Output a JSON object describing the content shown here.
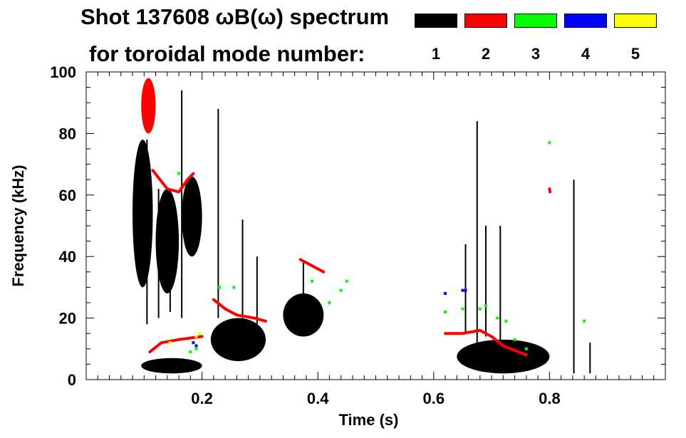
{
  "chart_data": {
    "type": "scatter",
    "title_line1": "Shot 137608 ωB(ω) spectrum",
    "title_line2": "for toroidal mode number:",
    "xlabel": "Time (s)",
    "ylabel": "Frequency (kHz)",
    "xlim": [
      0.0,
      1.0
    ],
    "ylim": [
      0,
      100
    ],
    "x_ticks": [
      0.2,
      0.4,
      0.6,
      0.8
    ],
    "x_tick_labels": [
      "0.2",
      "0.4",
      "0.6",
      "0.8"
    ],
    "y_ticks": [
      0,
      20,
      40,
      60,
      80,
      100
    ],
    "y_tick_labels": [
      "0",
      "20",
      "40",
      "60",
      "80",
      "100"
    ],
    "grid": false,
    "legend_placement": "top-right",
    "legend": [
      {
        "label": "1",
        "color": "#000000"
      },
      {
        "label": "2",
        "color": "#ff0000"
      },
      {
        "label": "3",
        "color": "#00ff00"
      },
      {
        "label": "4",
        "color": "#0000ff"
      },
      {
        "label": "5",
        "color": "#ffff00"
      }
    ],
    "series": [
      {
        "mode": 1,
        "color": "#000000",
        "blobs": [
          {
            "t0": 0.08,
            "t1": 0.115,
            "f0": 30,
            "f1": 78
          },
          {
            "t0": 0.12,
            "t1": 0.16,
            "f0": 28,
            "f1": 62
          },
          {
            "t0": 0.165,
            "t1": 0.2,
            "f0": 40,
            "f1": 66
          },
          {
            "t0": 0.095,
            "t1": 0.2,
            "f0": 2,
            "f1": 7
          },
          {
            "t0": 0.215,
            "t1": 0.31,
            "f0": 6,
            "f1": 20
          },
          {
            "t0": 0.34,
            "t1": 0.41,
            "f0": 14,
            "f1": 28
          },
          {
            "t0": 0.64,
            "t1": 0.8,
            "f0": 2,
            "f1": 13
          }
        ],
        "streaks": [
          {
            "t": 0.105,
            "f0": 18,
            "f1": 78
          },
          {
            "t": 0.125,
            "f0": 20,
            "f1": 62
          },
          {
            "t": 0.145,
            "f0": 22,
            "f1": 60
          },
          {
            "t": 0.165,
            "f0": 20,
            "f1": 94
          },
          {
            "t": 0.228,
            "f0": 20,
            "f1": 88
          },
          {
            "t": 0.27,
            "f0": 20,
            "f1": 52
          },
          {
            "t": 0.295,
            "f0": 18,
            "f1": 40
          },
          {
            "t": 0.375,
            "f0": 26,
            "f1": 38
          },
          {
            "t": 0.655,
            "f0": 15,
            "f1": 44
          },
          {
            "t": 0.675,
            "f0": 12,
            "f1": 84
          },
          {
            "t": 0.69,
            "f0": 14,
            "f1": 50
          },
          {
            "t": 0.715,
            "f0": 10,
            "f1": 50
          },
          {
            "t": 0.842,
            "f0": 2,
            "f1": 65
          },
          {
            "t": 0.87,
            "f0": 2,
            "f1": 12
          }
        ]
      },
      {
        "mode": 2,
        "color": "#ff0000",
        "blobs": [
          {
            "t0": 0.095,
            "t1": 0.12,
            "f0": 80,
            "f1": 98
          }
        ],
        "lines": [
          [
            [
              0.115,
              68
            ],
            [
              0.14,
              62
            ],
            [
              0.16,
              61
            ],
            [
              0.175,
              65
            ],
            [
              0.185,
              67
            ]
          ],
          [
            [
              0.11,
              9
            ],
            [
              0.13,
              12
            ],
            [
              0.16,
              13
            ],
            [
              0.2,
              14
            ]
          ],
          [
            [
              0.22,
              26
            ],
            [
              0.24,
              23
            ],
            [
              0.26,
              21
            ],
            [
              0.29,
              20
            ],
            [
              0.31,
              19
            ]
          ],
          [
            [
              0.37,
              39
            ],
            [
              0.39,
              37
            ],
            [
              0.41,
              35
            ]
          ],
          [
            [
              0.62,
              15
            ],
            [
              0.65,
              15
            ],
            [
              0.68,
              16
            ],
            [
              0.7,
              14
            ],
            [
              0.72,
              11
            ],
            [
              0.76,
              8
            ]
          ],
          [
            [
              0.8,
              62
            ],
            [
              0.801,
              61
            ]
          ]
        ]
      },
      {
        "mode": 3,
        "color": "#00ff00",
        "points": [
          [
            0.16,
            67
          ],
          [
            0.18,
            9
          ],
          [
            0.19,
            10
          ],
          [
            0.23,
            30
          ],
          [
            0.255,
            30
          ],
          [
            0.39,
            32
          ],
          [
            0.42,
            25
          ],
          [
            0.44,
            29
          ],
          [
            0.45,
            32
          ],
          [
            0.62,
            22
          ],
          [
            0.65,
            23
          ],
          [
            0.68,
            23
          ],
          [
            0.69,
            24
          ],
          [
            0.71,
            20
          ],
          [
            0.725,
            19
          ],
          [
            0.74,
            13
          ],
          [
            0.76,
            10
          ],
          [
            0.8,
            77
          ],
          [
            0.86,
            19
          ]
        ]
      },
      {
        "mode": 4,
        "color": "#0000ff",
        "points": [
          [
            0.185,
            12
          ],
          [
            0.19,
            11
          ],
          [
            0.62,
            28
          ],
          [
            0.65,
            29
          ],
          [
            0.655,
            29
          ]
        ]
      },
      {
        "mode": 5,
        "color": "#ffff00",
        "points": [
          [
            0.145,
            12
          ],
          [
            0.19,
            14
          ],
          [
            0.195,
            15
          ]
        ]
      }
    ]
  }
}
